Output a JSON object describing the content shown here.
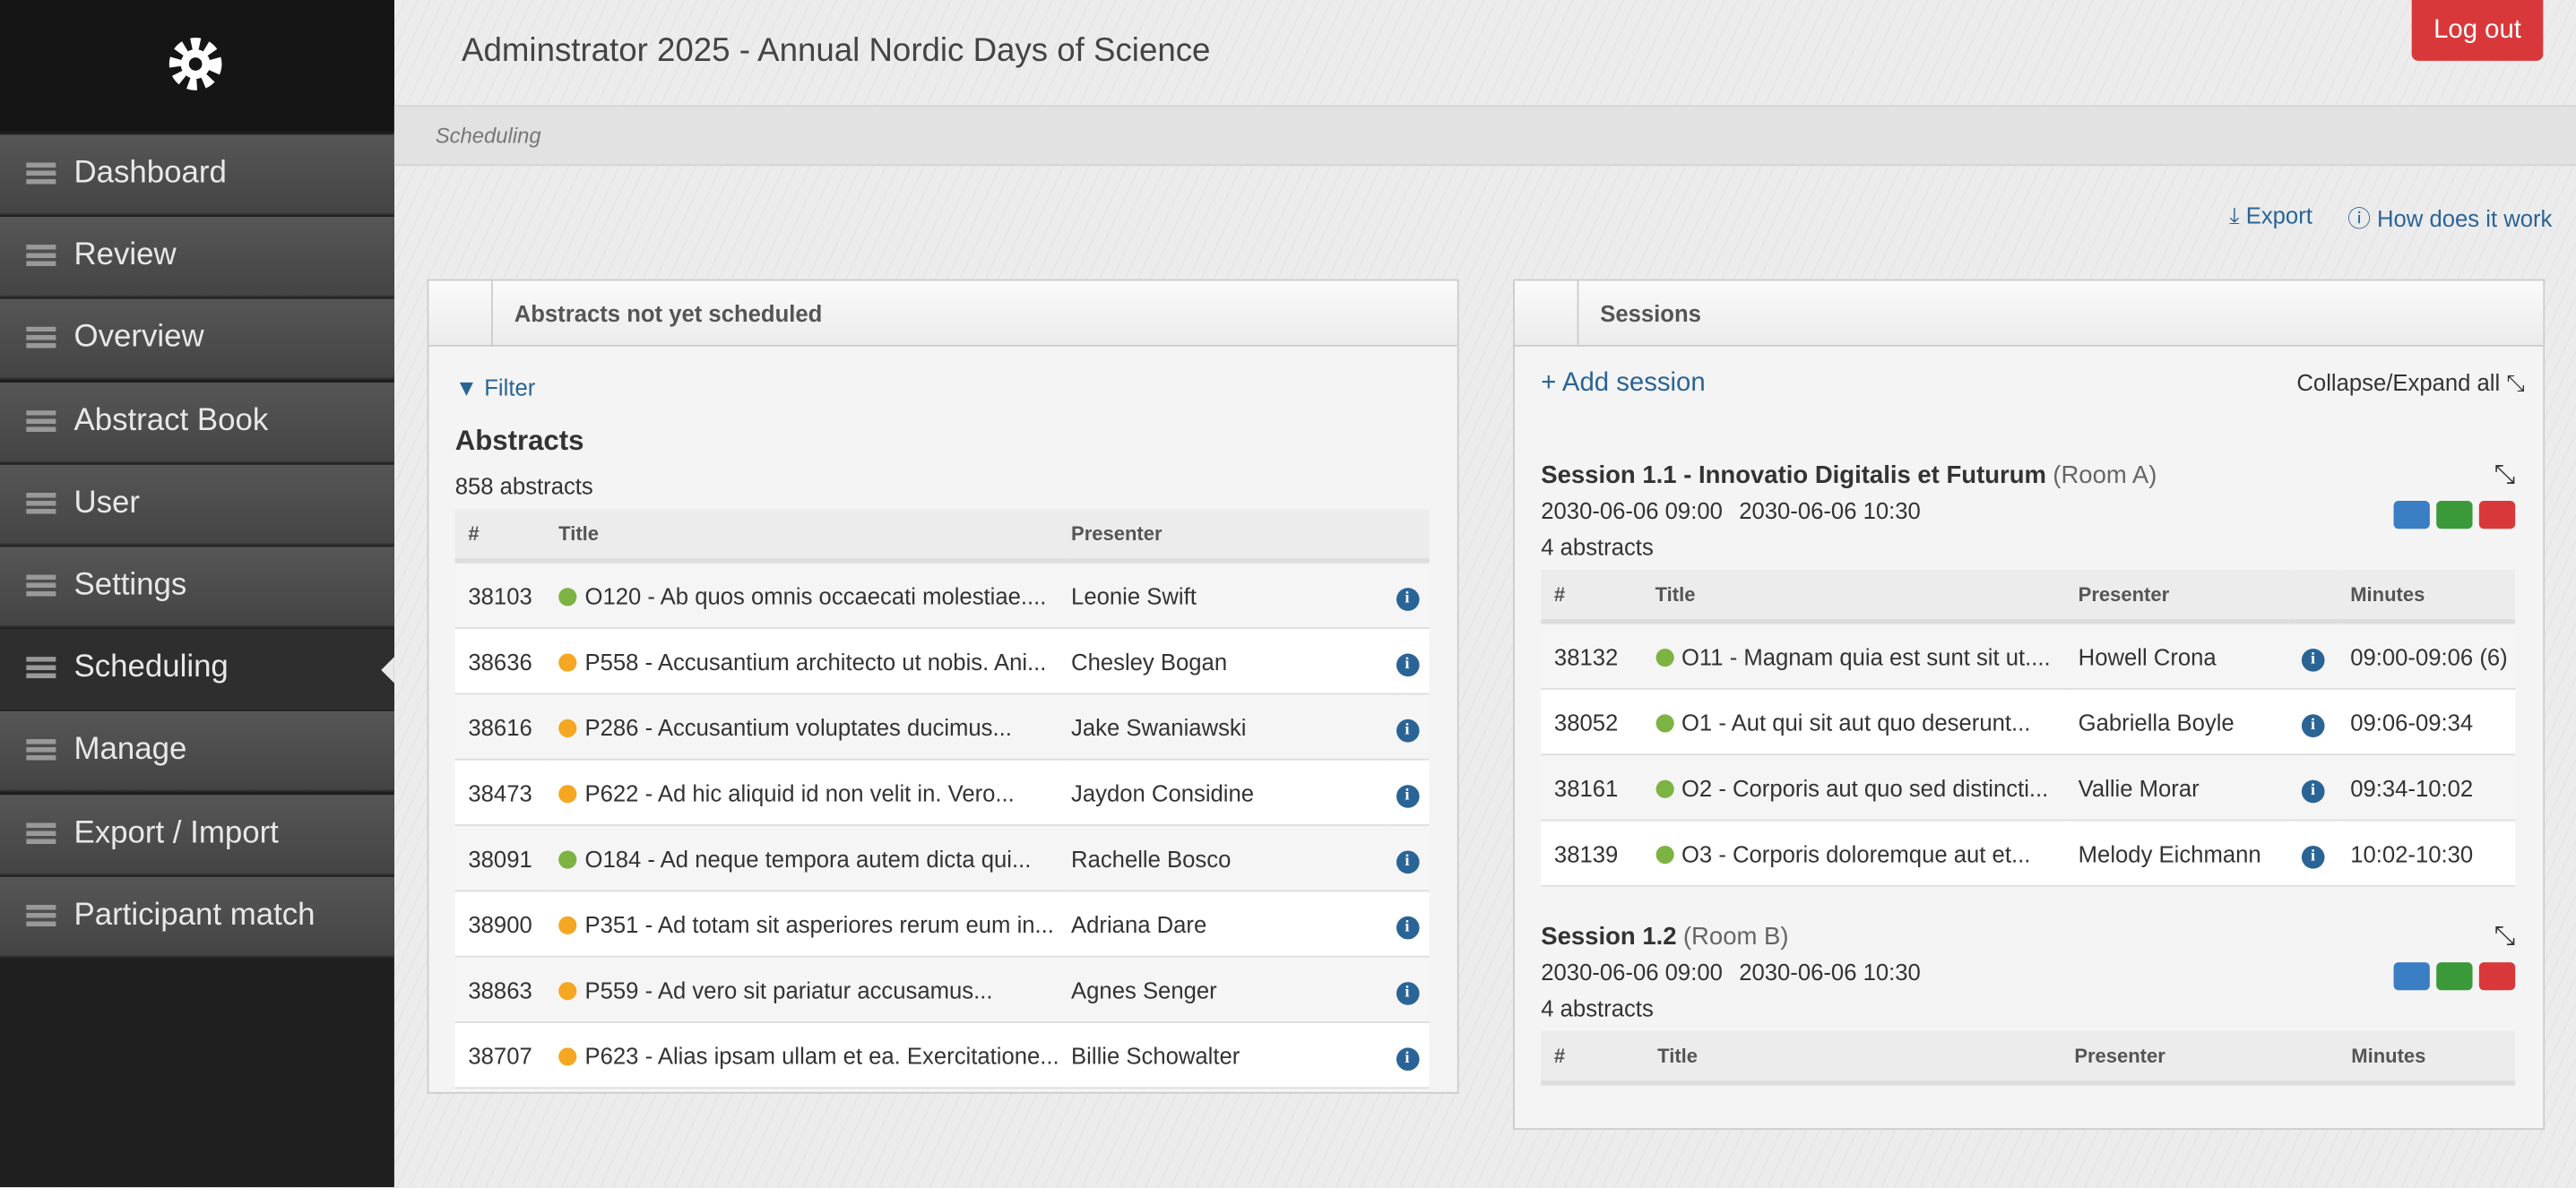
{
  "header": {
    "title": "Adminstrator 2025 - Annual Nordic Days of Science",
    "logout": "Log out",
    "breadcrumb": "Scheduling"
  },
  "sidebar": {
    "items": [
      "Dashboard",
      "Review",
      "Overview",
      "Abstract Book",
      "User",
      "Settings",
      "Scheduling",
      "Manage",
      "Export / Import",
      "Participant match"
    ],
    "active": 6
  },
  "toolbar": {
    "export": "Export",
    "help": "How does it work"
  },
  "abstracts_panel": {
    "title": "Abstracts not yet scheduled",
    "filter": "Filter",
    "heading": "Abstracts",
    "count": "858 abstracts",
    "columns": [
      "#",
      "Title",
      "Presenter"
    ],
    "rows": [
      {
        "id": "38103",
        "title": "O120 - Ab quos omnis occaecati molestiae....",
        "presenter": "Leonie Swift",
        "dot": "#7cb342"
      },
      {
        "id": "38636",
        "title": "P558 - Accusantium architecto ut nobis. Ani...",
        "presenter": "Chesley Bogan",
        "dot": "#f5a623"
      },
      {
        "id": "38616",
        "title": "P286 - Accusantium voluptates ducimus...",
        "presenter": "Jake Swaniawski",
        "dot": "#f5a623"
      },
      {
        "id": "38473",
        "title": "P622 - Ad hic aliquid id non velit in. Vero...",
        "presenter": "Jaydon Considine",
        "dot": "#f5a623"
      },
      {
        "id": "38091",
        "title": "O184 - Ad neque tempora autem dicta qui...",
        "presenter": "Rachelle Bosco",
        "dot": "#7cb342"
      },
      {
        "id": "38900",
        "title": "P351 - Ad totam sit asperiores rerum eum in...",
        "presenter": "Adriana Dare",
        "dot": "#f5a623"
      },
      {
        "id": "38863",
        "title": "P559 - Ad vero sit pariatur accusamus...",
        "presenter": "Agnes Senger",
        "dot": "#f5a623"
      },
      {
        "id": "38707",
        "title": "P623 - Alias ipsam ullam et ea. Exercitatione...",
        "presenter": "Billie Schowalter",
        "dot": "#f5a623"
      }
    ]
  },
  "sessions_panel": {
    "title": "Sessions",
    "add": "Add session",
    "collapse": "Collapse/Expand all",
    "columns": [
      "#",
      "Title",
      "Presenter",
      "Minutes"
    ],
    "sessions": [
      {
        "name": "Session 1.1 - Innovatio Digitalis et Futurum",
        "room": "(Room A)",
        "start": "2030-06-06 09:00",
        "end": "2030-06-06 10:30",
        "count": "4 abstracts",
        "rows": [
          {
            "id": "38132",
            "title": "O11 - Magnam quia est sunt sit ut....",
            "presenter": "Howell Crona",
            "minutes": "09:00-09:06 (6)",
            "dot": "#7cb342"
          },
          {
            "id": "38052",
            "title": "O1 - Aut qui sit aut quo deserunt...",
            "presenter": "Gabriella Boyle",
            "minutes": "09:06-09:34",
            "dot": "#7cb342"
          },
          {
            "id": "38161",
            "title": "O2 - Corporis aut quo sed distincti...",
            "presenter": "Vallie Morar",
            "minutes": "09:34-10:02",
            "dot": "#7cb342"
          },
          {
            "id": "38139",
            "title": "O3 - Corporis doloremque aut et...",
            "presenter": "Melody Eichmann",
            "minutes": "10:02-10:30",
            "dot": "#7cb342"
          }
        ]
      },
      {
        "name": "Session 1.2",
        "room": "(Room B)",
        "start": "2030-06-06 09:00",
        "end": "2030-06-06 10:30",
        "count": "4 abstracts",
        "rows": []
      }
    ]
  }
}
